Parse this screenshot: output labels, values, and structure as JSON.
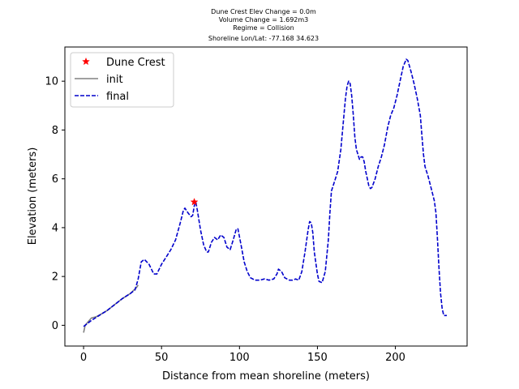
{
  "chart_data": {
    "type": "line",
    "title_lines": [
      "Dune Crest Elev Change = 0.0m",
      "Volume Change = 1.692m3",
      "Regime = Collision",
      "Shoreline Lon/Lat: -77.168 34.623"
    ],
    "xlabel": "Distance from mean shoreline (meters)",
    "ylabel": "Elevation (meters)",
    "xlim": [
      -12,
      246
    ],
    "ylim": [
      -0.85,
      11.4
    ],
    "xticks": [
      0,
      50,
      100,
      150,
      200
    ],
    "yticks": [
      0,
      2,
      4,
      6,
      8,
      10
    ],
    "grid": false,
    "legend_position": "top-left",
    "legend": [
      {
        "label": "Dune Crest",
        "marker": "star",
        "color": "#ff0000"
      },
      {
        "label": "init",
        "style": "solid",
        "color": "#808080"
      },
      {
        "label": "final",
        "style": "dashed",
        "color": "#0000cc"
      }
    ],
    "dune_crest": {
      "x": 71,
      "y": 5.05
    },
    "series": [
      {
        "name": "init",
        "color": "#808080",
        "style": "solid",
        "points": [
          [
            0,
            -0.3
          ],
          [
            1,
            0
          ],
          [
            3,
            0.15
          ],
          [
            5,
            0.3
          ],
          [
            8,
            0.35
          ],
          [
            11,
            0.45
          ],
          [
            15,
            0.6
          ],
          [
            20,
            0.85
          ],
          [
            25,
            1.1
          ],
          [
            30,
            1.3
          ],
          [
            34,
            1.55
          ],
          [
            35,
            1.65
          ]
        ]
      },
      {
        "name": "final",
        "color": "#0000cc",
        "style": "dashed",
        "points": [
          [
            0,
            -0.05
          ],
          [
            2,
            0.05
          ],
          [
            5,
            0.2
          ],
          [
            10,
            0.4
          ],
          [
            15,
            0.6
          ],
          [
            20,
            0.85
          ],
          [
            25,
            1.1
          ],
          [
            30,
            1.3
          ],
          [
            33,
            1.45
          ],
          [
            35,
            1.9
          ],
          [
            37,
            2.6
          ],
          [
            39,
            2.7
          ],
          [
            42,
            2.5
          ],
          [
            45,
            2.1
          ],
          [
            47,
            2.1
          ],
          [
            50,
            2.5
          ],
          [
            53,
            2.8
          ],
          [
            56,
            3.1
          ],
          [
            59,
            3.5
          ],
          [
            62,
            4.2
          ],
          [
            64,
            4.7
          ],
          [
            65,
            4.8
          ],
          [
            67,
            4.6
          ],
          [
            69,
            4.45
          ],
          [
            70,
            4.5
          ],
          [
            71,
            4.9
          ],
          [
            72,
            5.05
          ],
          [
            73,
            4.7
          ],
          [
            75,
            3.9
          ],
          [
            77,
            3.3
          ],
          [
            79,
            3.0
          ],
          [
            80,
            3.0
          ],
          [
            82,
            3.4
          ],
          [
            84,
            3.6
          ],
          [
            86,
            3.5
          ],
          [
            88,
            3.7
          ],
          [
            90,
            3.6
          ],
          [
            92,
            3.2
          ],
          [
            94,
            3.1
          ],
          [
            96,
            3.5
          ],
          [
            98,
            3.95
          ],
          [
            99,
            3.95
          ],
          [
            101,
            3.3
          ],
          [
            103,
            2.6
          ],
          [
            105,
            2.2
          ],
          [
            107,
            1.95
          ],
          [
            110,
            1.85
          ],
          [
            113,
            1.85
          ],
          [
            116,
            1.9
          ],
          [
            119,
            1.85
          ],
          [
            122,
            1.9
          ],
          [
            124,
            2.1
          ],
          [
            125,
            2.3
          ],
          [
            127,
            2.2
          ],
          [
            129,
            1.95
          ],
          [
            132,
            1.85
          ],
          [
            134,
            1.85
          ],
          [
            136,
            1.9
          ],
          [
            138,
            1.85
          ],
          [
            140,
            2.2
          ],
          [
            142,
            3.0
          ],
          [
            144,
            3.9
          ],
          [
            145,
            4.25
          ],
          [
            146,
            4.2
          ],
          [
            147,
            3.8
          ],
          [
            148,
            3.0
          ],
          [
            150,
            2.1
          ],
          [
            151,
            1.8
          ],
          [
            153,
            1.75
          ],
          [
            155,
            2.2
          ],
          [
            157,
            3.5
          ],
          [
            158,
            4.6
          ],
          [
            159,
            5.5
          ],
          [
            161,
            5.9
          ],
          [
            163,
            6.3
          ],
          [
            165,
            7.2
          ],
          [
            167,
            8.6
          ],
          [
            168,
            9.3
          ],
          [
            169,
            9.8
          ],
          [
            170,
            10.0
          ],
          [
            171,
            9.9
          ],
          [
            172,
            9.4
          ],
          [
            173,
            8.6
          ],
          [
            174,
            7.7
          ],
          [
            175,
            7.2
          ],
          [
            176,
            7.0
          ],
          [
            177,
            6.8
          ],
          [
            178,
            6.9
          ],
          [
            179,
            6.9
          ],
          [
            180,
            6.7
          ],
          [
            181,
            6.3
          ],
          [
            182,
            6.0
          ],
          [
            183,
            5.7
          ],
          [
            184,
            5.6
          ],
          [
            185,
            5.65
          ],
          [
            187,
            6.0
          ],
          [
            189,
            6.5
          ],
          [
            191,
            6.9
          ],
          [
            193,
            7.4
          ],
          [
            195,
            8.1
          ],
          [
            197,
            8.6
          ],
          [
            199,
            8.9
          ],
          [
            201,
            9.4
          ],
          [
            203,
            10.0
          ],
          [
            205,
            10.6
          ],
          [
            207,
            10.9
          ],
          [
            208,
            10.85
          ],
          [
            210,
            10.4
          ],
          [
            212,
            9.9
          ],
          [
            214,
            9.3
          ],
          [
            216,
            8.6
          ],
          [
            217,
            7.8
          ],
          [
            218,
            7.0
          ],
          [
            219,
            6.5
          ],
          [
            221,
            6.1
          ],
          [
            223,
            5.6
          ],
          [
            225,
            5.1
          ],
          [
            226,
            4.6
          ],
          [
            227,
            3.5
          ],
          [
            228,
            2.3
          ],
          [
            229,
            1.3
          ],
          [
            230,
            0.7
          ],
          [
            231,
            0.4
          ],
          [
            233,
            0.4
          ]
        ]
      }
    ]
  }
}
